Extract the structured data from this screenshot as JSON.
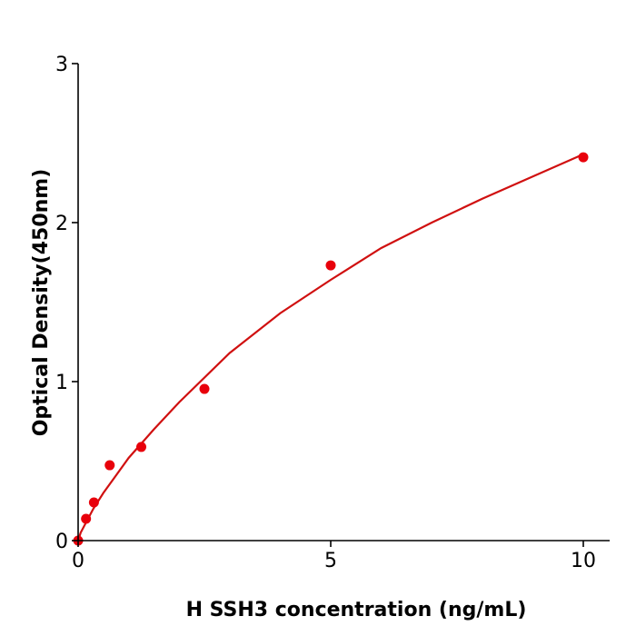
{
  "chart_data": {
    "type": "scatter",
    "title": "",
    "xlabel": "H  SSH3 concentration (ng/mL)",
    "ylabel": "Optical Density(450nm)",
    "xlim": [
      0,
      10.5
    ],
    "ylim": [
      0,
      3
    ],
    "xticks": [
      0,
      5,
      10
    ],
    "yticks": [
      0,
      1,
      2,
      3
    ],
    "grid": false,
    "colors": {
      "points": "#e8000b",
      "curve": "#d01010",
      "axes": "#000000"
    },
    "points": [
      {
        "x": 0,
        "y": 0.0
      },
      {
        "x": 0.156,
        "y": 0.137
      },
      {
        "x": 0.3125,
        "y": 0.24
      },
      {
        "x": 0.625,
        "y": 0.474
      },
      {
        "x": 1.25,
        "y": 0.589
      },
      {
        "x": 2.5,
        "y": 0.954
      },
      {
        "x": 5,
        "y": 1.731
      },
      {
        "x": 10,
        "y": 2.411
      }
    ],
    "fit_curve": [
      [
        0,
        0
      ],
      [
        0.05,
        0.05
      ],
      [
        0.15,
        0.11
      ],
      [
        0.3,
        0.2
      ],
      [
        0.5,
        0.3
      ],
      [
        1,
        0.52
      ],
      [
        1.5,
        0.7
      ],
      [
        2,
        0.87
      ],
      [
        3,
        1.18
      ],
      [
        4,
        1.43
      ],
      [
        5,
        1.64
      ],
      [
        6,
        1.84
      ],
      [
        7,
        2.0
      ],
      [
        8,
        2.15
      ],
      [
        9,
        2.29
      ],
      [
        10,
        2.43
      ]
    ]
  }
}
